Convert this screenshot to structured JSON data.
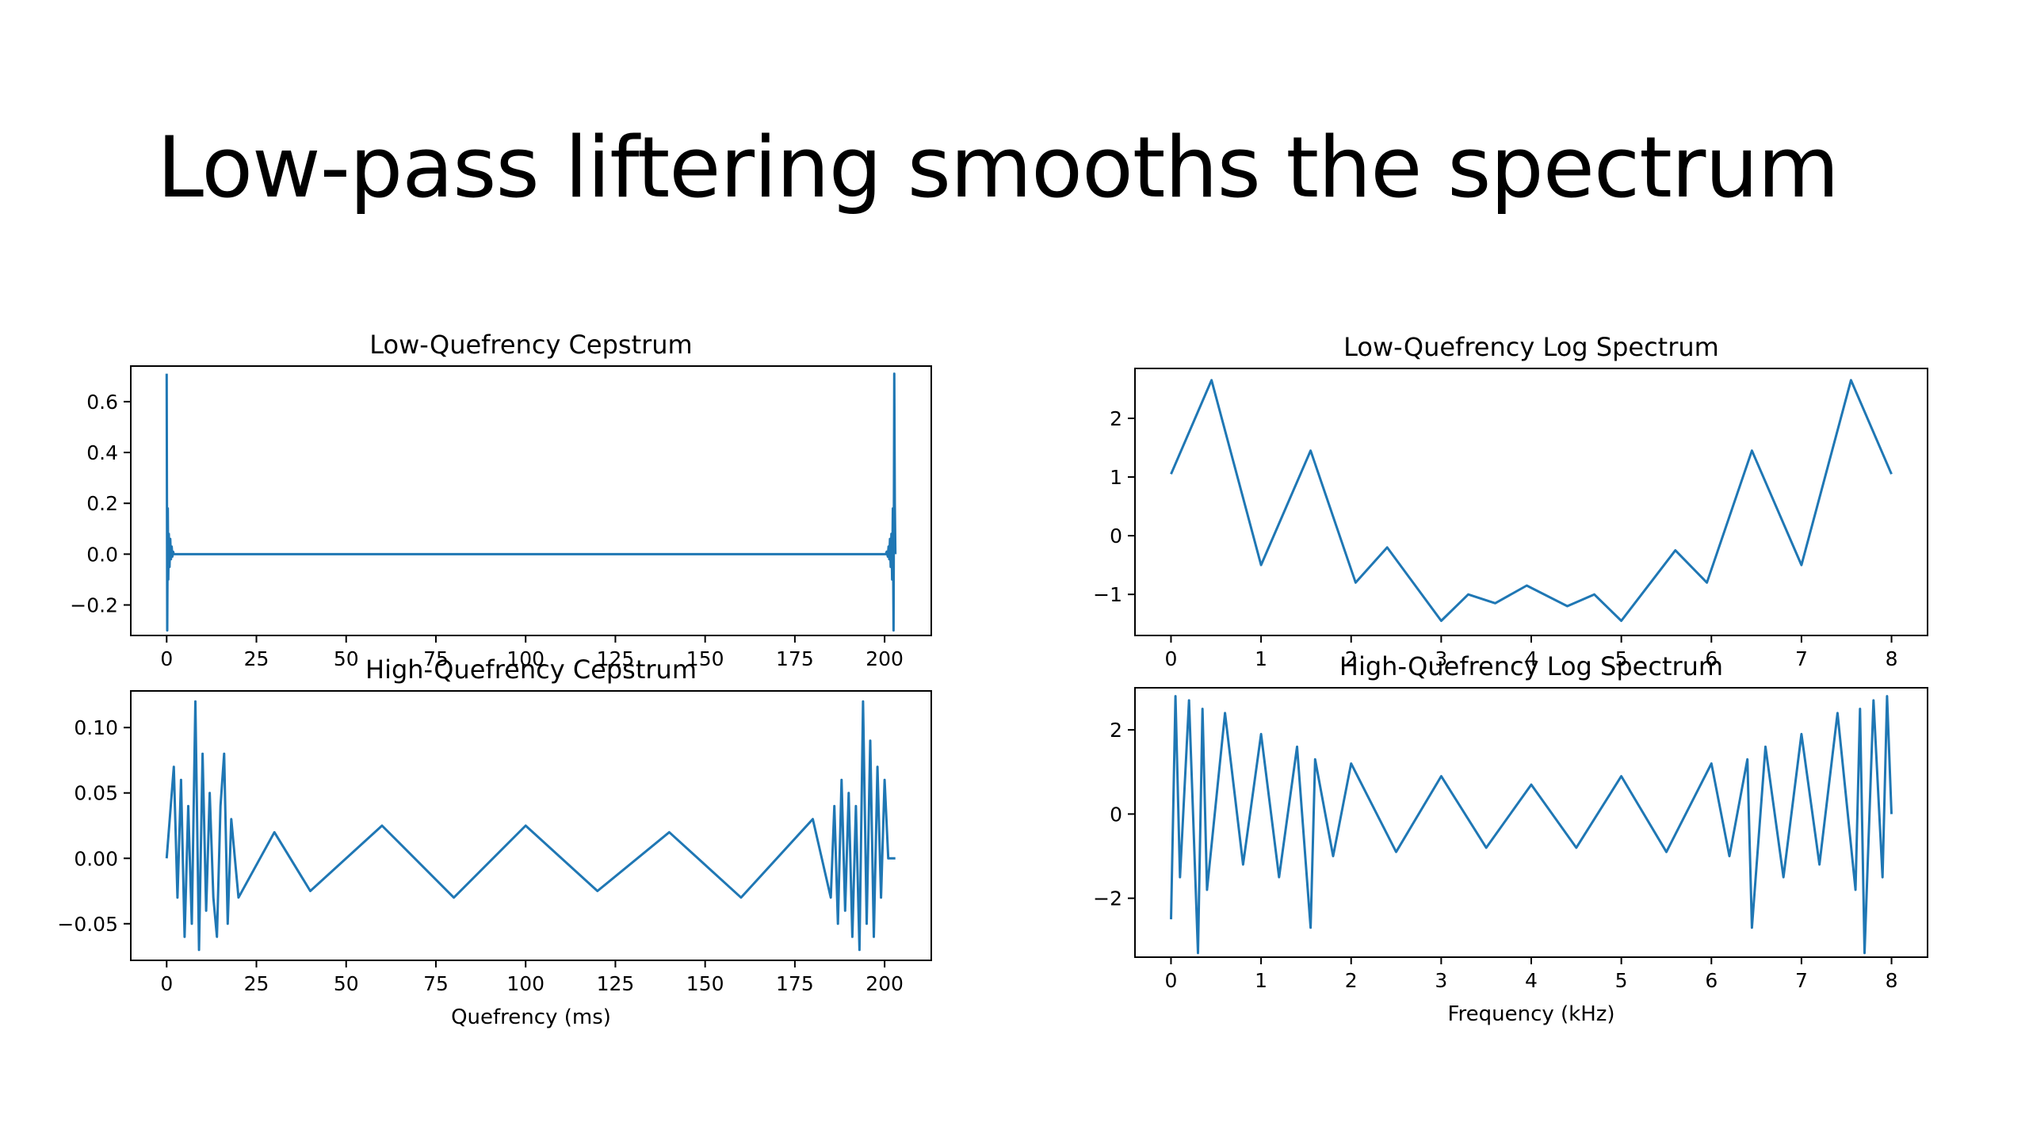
{
  "slide": {
    "title": "Low-pass liftering smooths the spectrum"
  },
  "colors": {
    "series": "#1f77b4",
    "frame": "#000000",
    "background": "#ffffff"
  },
  "chart_data": [
    {
      "id": "lq-cepstrum",
      "type": "line",
      "title": "Low-Quefrency Cepstrum",
      "xlabel": "",
      "ylabel": "",
      "xlim": [
        -10,
        213
      ],
      "ylim": [
        -0.32,
        0.74
      ],
      "xticks": [
        0,
        25,
        50,
        75,
        100,
        125,
        150,
        175,
        200
      ],
      "xtick_labels": [
        "0",
        "25",
        "50",
        "75",
        "100",
        "125",
        "150",
        "175",
        "200"
      ],
      "yticks": [
        -0.2,
        0.0,
        0.2,
        0.4,
        0.6
      ],
      "ytick_labels": [
        "−0.2",
        "0.0",
        "0.2",
        "0.4",
        "0.6"
      ],
      "grid": false,
      "series": [
        {
          "x": [
            0,
            0.15,
            0.3,
            0.45,
            0.6,
            0.8,
            1.0,
            1.2,
            1.4,
            1.6,
            1.8,
            2.0,
            2.3,
            5,
            100,
            199.5,
            200.3,
            200.6,
            200.9,
            201.1,
            201.3,
            201.5,
            201.7,
            201.9,
            202.1,
            202.3,
            202.5,
            202.7,
            202.85,
            203
          ],
          "y": [
            0.71,
            -0.3,
            0.18,
            -0.1,
            0.08,
            -0.05,
            0.06,
            -0.02,
            0.03,
            -0.01,
            0.01,
            0.0,
            0.0,
            0.0,
            0.0,
            0.0,
            0.0,
            0.01,
            -0.01,
            0.03,
            -0.02,
            0.06,
            -0.05,
            0.08,
            -0.1,
            0.18,
            -0.3,
            0.71,
            0.2,
            0.0
          ]
        }
      ]
    },
    {
      "id": "lq-log-spectrum",
      "type": "line",
      "title": "Low-Quefrency Log Spectrum",
      "xlabel": "",
      "ylabel": "",
      "xlim": [
        -0.4,
        8.4
      ],
      "ylim": [
        -1.7,
        2.85
      ],
      "xticks": [
        0,
        1,
        2,
        3,
        4,
        5,
        6,
        7,
        8
      ],
      "xtick_labels": [
        "0",
        "1",
        "2",
        "3",
        "4",
        "5",
        "6",
        "7",
        "8"
      ],
      "yticks": [
        -1,
        0,
        1,
        2
      ],
      "ytick_labels": [
        "−1",
        "0",
        "1",
        "2"
      ],
      "grid": false,
      "series": [
        {
          "x": [
            0,
            0.45,
            1.0,
            1.55,
            2.05,
            2.4,
            3.0,
            3.3,
            3.6,
            3.95,
            4.4,
            4.7,
            5.0,
            5.6,
            5.95,
            6.45,
            7.0,
            7.55,
            8.0
          ],
          "y": [
            1.05,
            2.65,
            -0.5,
            1.45,
            -0.8,
            -0.2,
            -1.45,
            -1.0,
            -1.15,
            -0.85,
            -1.2,
            -1.0,
            -1.45,
            -0.25,
            -0.8,
            1.45,
            -0.5,
            2.65,
            1.05
          ]
        }
      ]
    },
    {
      "id": "hq-cepstrum",
      "type": "line",
      "title": "High-Quefrency Cepstrum",
      "xlabel": "Quefrency (ms)",
      "ylabel": "",
      "xlim": [
        -10,
        213
      ],
      "ylim": [
        -0.078,
        0.128
      ],
      "xticks": [
        0,
        25,
        50,
        75,
        100,
        125,
        150,
        175,
        200
      ],
      "xtick_labels": [
        "0",
        "25",
        "50",
        "75",
        "100",
        "125",
        "150",
        "175",
        "200"
      ],
      "yticks": [
        -0.05,
        0.0,
        0.05,
        0.1
      ],
      "ytick_labels": [
        "−0.05",
        "0.00",
        "0.05",
        "0.10"
      ],
      "grid": false,
      "series": [
        {
          "x": [
            0,
            2,
            3,
            4,
            5,
            6,
            7,
            8,
            9,
            10,
            11,
            12,
            13,
            14,
            15,
            16,
            17,
            18,
            20,
            30,
            40,
            60,
            80,
            100,
            120,
            140,
            160,
            180,
            185,
            186,
            187,
            188,
            189,
            190,
            191,
            192,
            193,
            194,
            195,
            196,
            197,
            198,
            199,
            200,
            201,
            203
          ],
          "y": [
            0.0,
            0.07,
            -0.03,
            0.06,
            -0.06,
            0.04,
            -0.05,
            0.12,
            -0.07,
            0.08,
            -0.04,
            0.05,
            -0.03,
            -0.06,
            0.04,
            0.08,
            -0.05,
            0.03,
            -0.03,
            0.02,
            -0.025,
            0.025,
            -0.03,
            0.025,
            -0.025,
            0.02,
            -0.03,
            0.03,
            -0.03,
            0.04,
            -0.05,
            0.06,
            -0.04,
            0.05,
            -0.06,
            0.04,
            -0.07,
            0.12,
            -0.05,
            0.09,
            -0.06,
            0.07,
            -0.03,
            0.06,
            0.0,
            0.0
          ]
        }
      ]
    },
    {
      "id": "hq-log-spectrum",
      "type": "line",
      "title": "High-Quefrency Log Spectrum",
      "xlabel": "Frequency (kHz)",
      "ylabel": "",
      "xlim": [
        -0.4,
        8.4
      ],
      "ylim": [
        -3.4,
        3.0
      ],
      "xticks": [
        0,
        1,
        2,
        3,
        4,
        5,
        6,
        7,
        8
      ],
      "xtick_labels": [
        "0",
        "1",
        "2",
        "3",
        "4",
        "5",
        "6",
        "7",
        "8"
      ],
      "yticks": [
        -2,
        0,
        2
      ],
      "ytick_labels": [
        "−2",
        "0",
        "2"
      ],
      "grid": false,
      "series": [
        {
          "x": [
            0,
            0.05,
            0.1,
            0.2,
            0.3,
            0.35,
            0.4,
            0.6,
            0.8,
            1.0,
            1.2,
            1.4,
            1.55,
            1.6,
            1.8,
            2.0,
            2.5,
            3.0,
            3.5,
            4.0,
            4.5,
            5.0,
            5.5,
            6.0,
            6.2,
            6.4,
            6.45,
            6.6,
            6.8,
            7.0,
            7.2,
            7.4,
            7.6,
            7.65,
            7.7,
            7.8,
            7.9,
            7.95,
            8.0
          ],
          "y": [
            -2.5,
            2.8,
            -1.5,
            2.7,
            -3.3,
            2.5,
            -1.8,
            2.4,
            -1.2,
            1.9,
            -1.5,
            1.6,
            -2.7,
            1.3,
            -1.0,
            1.2,
            -0.9,
            0.9,
            -0.8,
            0.7,
            -0.8,
            0.9,
            -0.9,
            1.2,
            -1.0,
            1.3,
            -2.7,
            1.6,
            -1.5,
            1.9,
            -1.2,
            2.4,
            -1.8,
            2.5,
            -3.3,
            2.7,
            -1.5,
            2.8,
            0.0
          ]
        }
      ]
    }
  ]
}
